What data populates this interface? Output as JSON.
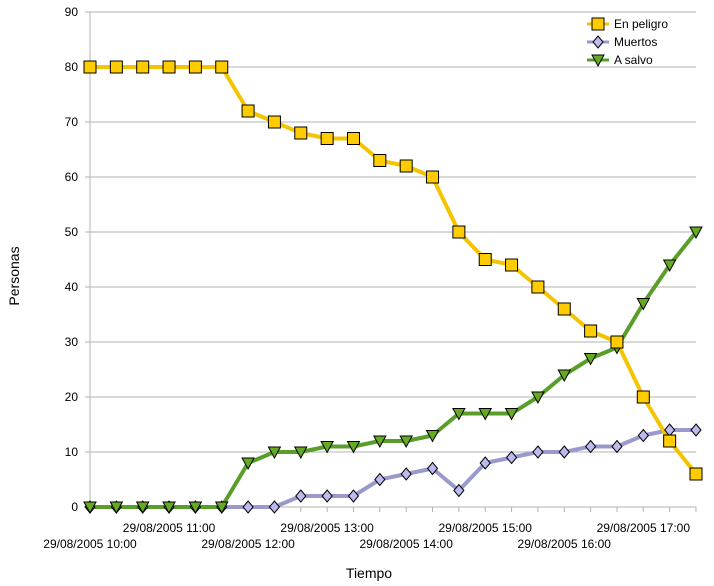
{
  "chart_data": {
    "type": "line",
    "title": "",
    "xlabel": "Tiempo",
    "ylabel": "Personas",
    "ylim": [
      0,
      90
    ],
    "yticks": [
      0,
      10,
      20,
      30,
      40,
      50,
      60,
      70,
      80,
      90
    ],
    "grid": "horizontal",
    "legend_position": "top-right",
    "x_tick_labels": [
      "29/08/2005 10:00",
      "29/08/2005 11:00",
      "29/08/2005 12:00",
      "29/08/2005 13:00",
      "29/08/2005 14:00",
      "29/08/2005 15:00",
      "29/08/2005 16:00",
      "29/08/2005 17:00"
    ],
    "series": [
      {
        "name": "En peligro",
        "marker": "square",
        "color": "#f5c400",
        "marker_color": "#ffcc00",
        "values": [
          80,
          80,
          80,
          80,
          80,
          80,
          72,
          70,
          68,
          67,
          67,
          63,
          62,
          60,
          50,
          45,
          44,
          40,
          36,
          32,
          30,
          20,
          12,
          6
        ]
      },
      {
        "name": "Muertos",
        "marker": "diamond",
        "color": "#9999cc",
        "marker_color": "#bbbbee",
        "values": [
          0,
          0,
          0,
          0,
          0,
          0,
          0,
          0,
          2,
          2,
          2,
          5,
          6,
          7,
          3,
          8,
          9,
          10,
          10,
          11,
          11,
          13,
          14,
          14
        ]
      },
      {
        "name": "A salvo",
        "marker": "triangle-down",
        "color": "#5a9e2a",
        "marker_color": "#66aa22",
        "values": [
          0,
          0,
          0,
          0,
          0,
          0,
          8,
          10,
          10,
          11,
          11,
          12,
          12,
          13,
          17,
          17,
          17,
          20,
          24,
          27,
          29,
          37,
          44,
          50
        ]
      }
    ]
  }
}
